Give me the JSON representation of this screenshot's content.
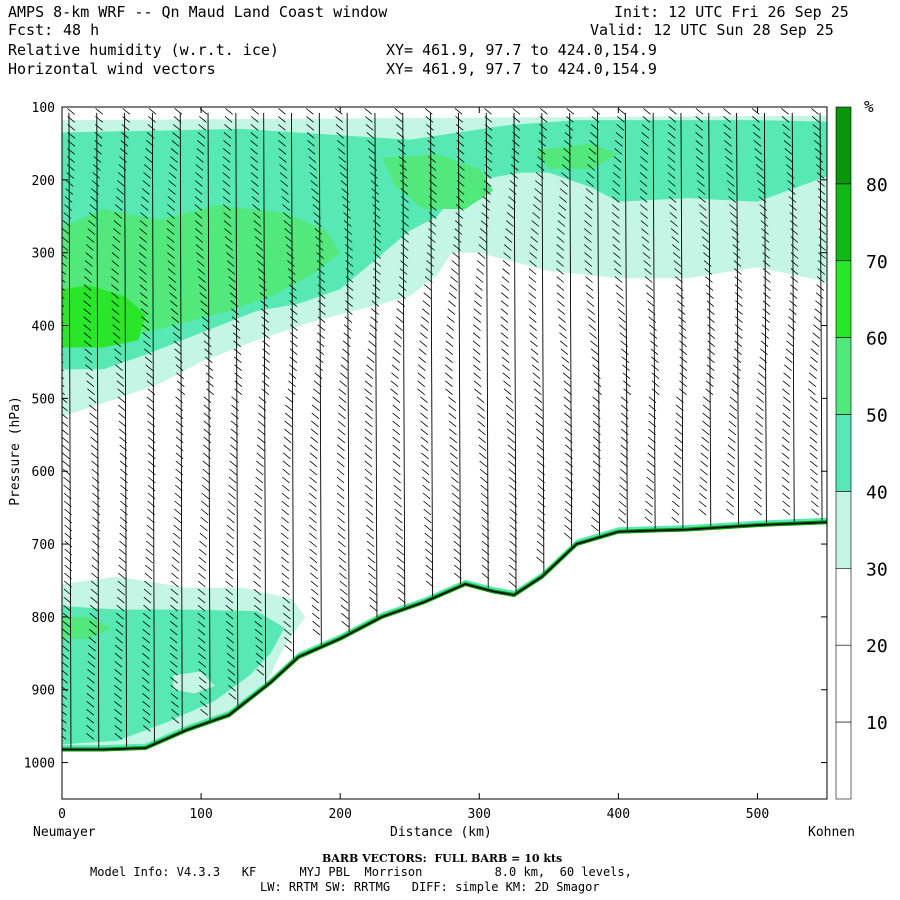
{
  "header": {
    "title": "AMPS 8-km WRF -- Qn Maud Land Coast window",
    "init": "Init: 12 UTC Fri 26 Sep 25",
    "fcst_label": "Fcst:",
    "fcst_value": "48 h",
    "valid": "Valid: 12 UTC Sun 28 Sep 25",
    "field1": "Relative humidity (w.r.t. ice)",
    "field1_xy": "XY= 461.9, 97.7 to 424.0,154.9",
    "field2": "Horizontal wind vectors",
    "field2_xy": "XY= 461.9, 97.7 to 424.0,154.9"
  },
  "chart_data": {
    "type": "heatmap",
    "title": "Cross section: Relative humidity (w.r.t. ice) and horizontal wind vectors",
    "xlabel": "Distance (km)",
    "ylabel": "Pressure (hPa)",
    "xlim": [
      0,
      550
    ],
    "ylim": [
      1050,
      100
    ],
    "x_ticks": [
      0,
      100,
      200,
      300,
      400,
      500
    ],
    "y_ticks": [
      100,
      200,
      300,
      400,
      500,
      600,
      700,
      800,
      900,
      1000
    ],
    "left_endpoint": "Neumayer",
    "right_endpoint": "Kohnen",
    "colorbar": {
      "unit": "%",
      "levels": [
        10,
        20,
        30,
        40,
        50,
        60,
        70,
        80
      ],
      "colors": [
        "#ffffff",
        "#ffffff",
        "#ffffff",
        "#c5f5e5",
        "#57e8b5",
        "#52e87b",
        "#29e629",
        "#14b814",
        "#0a960a"
      ]
    },
    "terrain_profile": [
      {
        "x": 0,
        "p": 982
      },
      {
        "x": 30,
        "p": 982
      },
      {
        "x": 60,
        "p": 980
      },
      {
        "x": 90,
        "p": 955
      },
      {
        "x": 120,
        "p": 935
      },
      {
        "x": 150,
        "p": 890
      },
      {
        "x": 170,
        "p": 855
      },
      {
        "x": 200,
        "p": 830
      },
      {
        "x": 230,
        "p": 800
      },
      {
        "x": 260,
        "p": 780
      },
      {
        "x": 290,
        "p": 755
      },
      {
        "x": 310,
        "p": 765
      },
      {
        "x": 325,
        "p": 770
      },
      {
        "x": 345,
        "p": 745
      },
      {
        "x": 370,
        "p": 700
      },
      {
        "x": 400,
        "p": 683
      },
      {
        "x": 450,
        "p": 680
      },
      {
        "x": 500,
        "p": 674
      },
      {
        "x": 550,
        "p": 670
      }
    ],
    "humid_regions": [
      {
        "level": 30,
        "x": [
          0,
          550
        ],
        "p": [
          120,
          520
        ],
        "note": "upper moist layer"
      },
      {
        "level": 50,
        "x": [
          0,
          300
        ],
        "p": [
          220,
          470
        ],
        "note": "upper left core"
      },
      {
        "level": 60,
        "x": [
          0,
          100
        ],
        "p": [
          330,
          440
        ],
        "note": "maximum near 400 hPa"
      },
      {
        "level": 40,
        "x": [
          0,
          170
        ],
        "p": [
          760,
          980
        ],
        "note": "low-level moist layer"
      }
    ],
    "barb_columns_km": [
      5,
      25,
      45,
      65,
      85,
      105,
      125,
      145,
      165,
      185,
      205,
      225,
      245,
      265,
      285,
      305,
      325,
      345,
      365,
      385,
      405,
      425,
      445,
      465,
      485,
      505,
      525,
      545
    ]
  },
  "footer": {
    "barb_note": "BARB VECTORS:  FULL BARB = 10 kts",
    "model_info_1": "Model Info: V4.3.3   KF      MYJ PBL  Morrison          8.0 km,  60 levels,",
    "model_info_2": "LW: RRTM SW: RRTMG   DIFF: simple KM: 2D Smagor"
  }
}
